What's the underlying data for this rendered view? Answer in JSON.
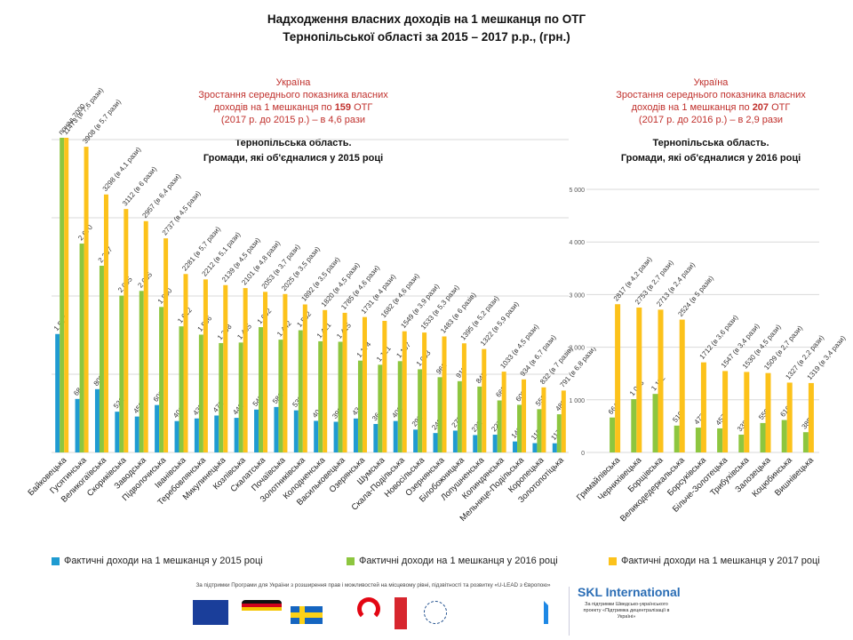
{
  "title": {
    "line1": "Надходження власних доходів на 1 мешканця по ОТГ",
    "line2": "Тернопільської області за 2015 – 2017 р.р., (грн.)"
  },
  "left_note": {
    "l1": "Україна",
    "l2": "Зростання середнього показника власних",
    "l3a": "доходів на 1 мешканця по ",
    "l3b": "159",
    "l3c": " ОТГ",
    "l4": "(2017 р. до 2015 р.) – в 4,6 рази",
    "sub1": "Тернопільська  область.",
    "sub2": "Громади, які об'єдналися  у 2015 році"
  },
  "right_note": {
    "l1": "Україна",
    "l2": "Зростання середнього показника власних",
    "l3a": "доходів на 1 мешканця по ",
    "l3b": "207",
    "l3c": " ОТГ",
    "l4": "(2017 р. до 2016 р.) – в 2,9 рази",
    "sub1": "Тернопільська  область.",
    "sub2": "Громади, які об'єдналися  у 2016 році"
  },
  "colors": {
    "y2015": "#1f9bd1",
    "y2016": "#8dc63f",
    "y2017": "#fcc21b",
    "grid": "#d9d9d9"
  },
  "legend": [
    {
      "label": "Фактичні доходи на 1 мешканця у 2015 році",
      "color": "#1f9bd1"
    },
    {
      "label": "Фактичні доходи на 1 мешканця у 2016 році",
      "color": "#8dc63f"
    },
    {
      "label": "Фактичні доходи на 1 мешканця у 2017 році",
      "color": "#fcc21b"
    }
  ],
  "chart_data": [
    {
      "type": "bar",
      "title": "Громади, які об'єдналися у 2015 році",
      "xlabel": "",
      "ylabel": "",
      "ylim": [
        0,
        4000
      ],
      "grid": true,
      "categories": [
        "Байковецька",
        "Гусятинська",
        "Великогаївська",
        "Скориківська",
        "Заводська",
        "Підволочиська",
        "Іванівська",
        "Теребовлянська",
        "Микулинецька",
        "Козлівська",
        "Скалатська",
        "Почаївська",
        "Золотниківська",
        "Колодненська",
        "Васильковецька",
        "Озерянська",
        "Шумська",
        "Скала-Подільська",
        "Новосільська",
        "Озернянська",
        "Білобожницька",
        "Лопушненська",
        "Колиндянська",
        "Мельнице-Подільська",
        "Коропецька",
        "Золотопотіцька"
      ],
      "series": [
        {
          "name": "Фактичні доходи на 1 мешканця у 2015 році",
          "values": [
            1514,
            684,
            809,
            521,
            459,
            606,
            401,
            435,
            472,
            442,
            548,
            581,
            538,
            404,
            392,
            434,
            364,
            402,
            292,
            248,
            279,
            222,
            227,
            140,
            119,
            117
          ],
          "labels": [
            "1 514",
            "684",
            "809",
            "521",
            "459",
            "606",
            "401",
            "435",
            "472",
            "442",
            "548",
            "581",
            "538",
            "404",
            "392",
            "434",
            "364",
            "402",
            "292",
            "248",
            "279",
            "222",
            "227",
            "140",
            "119",
            "117"
          ]
        },
        {
          "name": "Фактичні доходи на 1 мешканця у 2016 році",
          "values": [
            7000,
            2670,
            2387,
            2005,
            2065,
            1860,
            1612,
            1506,
            1398,
            1405,
            1602,
            1442,
            1562,
            1421,
            1415,
            1174,
            1121,
            1167,
            1063,
            962,
            911,
            842,
            665,
            609,
            553,
            488
          ],
          "labels": [
            "понад 7000",
            "2 670",
            "2 387",
            "2 005",
            "2 065",
            "1 860",
            "1 612",
            "1 506",
            "1 398",
            "1 405",
            "1 602",
            "1 442",
            "1 562",
            "1 421",
            "1 415",
            "1 174",
            "1 121",
            "1 167",
            "1 063",
            "962",
            "911",
            "842",
            "665",
            "609",
            "553",
            "488"
          ]
        },
        {
          "name": "Фактичні доходи на 1 мешканця у 2017 році",
          "values": [
            11473,
            3908,
            3298,
            3112,
            2957,
            2737,
            2281,
            2212,
            2139,
            2101,
            2053,
            2025,
            1892,
            1820,
            1785,
            1731,
            1682,
            1549,
            1533,
            1483,
            1395,
            1322,
            1033,
            934,
            832,
            791
          ],
          "labels": [
            "11473 (в 7,6 рази)",
            "3908 (в 5,7 рази)",
            "3298 (в 4,1 рази)",
            "3112 (в 6 рази)",
            "2957 (в 6,4 рази)",
            "2737 (в 4,5 рази)",
            "2281 (в 5,7 рази)",
            "2212 (в 5,1 рази)",
            "2139 (в 4,5 рази)",
            "2101 (в 4,8 рази)",
            "2053 (в 3,7 рази)",
            "2025 (в 3,5 рази)",
            "1892 (в 3,5 рази)",
            "1820 (в 4,5 рази)",
            "1785 (в 4,6 рази)",
            "1731 (в 4 рази)",
            "1682 (в 4,6 рази)",
            "1549 (в 3,9 рази)",
            "1533 (в 5,3 рази)",
            "1483 (в 6 разів)",
            "1395 (в 5,2 рази)",
            "1322 (в 5,9 рази)",
            "1033 (в 4,5 рази)",
            "934 (в 6,7 рази)",
            "832 (в 7 разів)",
            "791 (в 6,8 рази)"
          ]
        }
      ]
    },
    {
      "type": "bar",
      "title": "Громади, які об'єдналися у 2016 році",
      "xlabel": "",
      "ylabel": "",
      "ylim": [
        0,
        5000
      ],
      "yticks": [
        "0",
        "1 000",
        "2 000",
        "3 000",
        "4 000",
        "5 000"
      ],
      "grid": true,
      "categories": [
        "Гримайлівська",
        "Чернихівецька",
        "Борщівська",
        "Великодедеркальська",
        "Борсуківська",
        "Більче-Золотецька",
        "Трибухівська",
        "Залозецька",
        "Коцюбинська",
        "Вишнівецька"
      ],
      "series": [
        {
          "name": "Фактичні доходи на 1 мешканця у 2016 році",
          "values": [
            664,
            1013,
            1112,
            510,
            472,
            457,
            338,
            559,
            616,
            385
          ],
          "labels": [
            "664",
            "1 013",
            "1 112",
            "510",
            "472",
            "457",
            "338",
            "559",
            "616",
            "385"
          ]
        },
        {
          "name": "Фактичні доходи на 1 мешканця у 2017 році",
          "values": [
            2817,
            2753,
            2713,
            2524,
            1712,
            1547,
            1530,
            1509,
            1327,
            1319
          ],
          "labels": [
            "2817 (в 4,2 рази)",
            "2753 (в 2,7 рази)",
            "2713 (в 2,4 рази)",
            "2524 (в 5 разів)",
            "1712 (в 3,6 рази)",
            "1547 (в 3,4 рази)",
            "1530 (в 4,5 рази)",
            "1509 (в 2,7 рази)",
            "1327 (в 2,2 рази)",
            "1319 (в 3,4 рази)"
          ]
        }
      ]
    }
  ],
  "footer": {
    "support_text": "За підтримки Програми для України з розширення прав і можливостей на місцевому рівні, підзвітності та розвитку «U-LEAD з Європою»",
    "logos": [
      "EU flag",
      "Співпраця з Німеччиною",
      "Швеція Sverige",
      "Polish aid",
      "Danish coat of arms",
      "Estonia",
      "Міністерство регіонального розвитку будівництва та житлово-комунального господарства України"
    ],
    "skl_name": "SKL International",
    "skl_text": "За підтримки Шведсько-українського проекту «Підтримка децентралізації в Україні»"
  }
}
